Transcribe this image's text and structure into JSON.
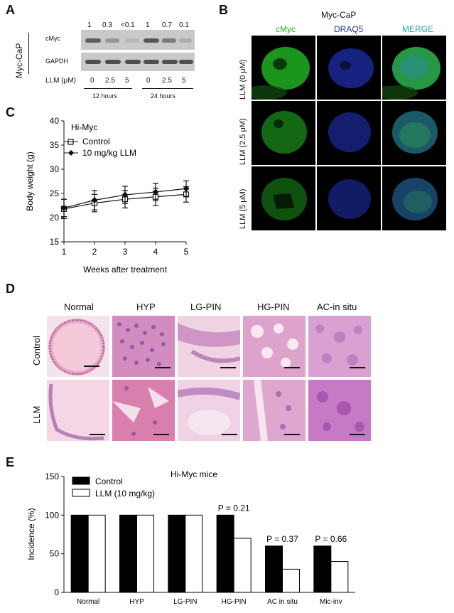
{
  "panels": {
    "a": "A",
    "b": "B",
    "c": "C",
    "d": "D",
    "e": "E"
  },
  "panelA": {
    "row_group": "Myc-CaP",
    "blot_rows": [
      "cMyc",
      "GAPDH"
    ],
    "ratios": [
      "1",
      "0.3",
      "<0.1",
      "1",
      "0.7",
      "0.1"
    ],
    "llm_label": "LLM (μM)",
    "doses": [
      "0",
      "2.5",
      "5",
      "0",
      "2.5",
      "5"
    ],
    "time_groups": [
      "12 hours",
      "24 hours"
    ]
  },
  "panelB": {
    "title": "Myc-CaP",
    "columns": [
      "cMyc",
      "DRAQ5",
      "MERGE"
    ],
    "column_colors": [
      "#22aa22",
      "#2233aa",
      "#22aaaa"
    ],
    "rows": [
      "LLM (0 μM)",
      "LLM (2.5 μM)",
      "LLM (5 μM)"
    ]
  },
  "chart_data": [
    {
      "type": "line",
      "panel": "C",
      "title": "Hi-Myc",
      "xlabel": "Weeks after treatment",
      "ylabel": "Body weight (g)",
      "x": [
        1,
        2,
        3,
        4,
        5
      ],
      "xlim": [
        1,
        5
      ],
      "ylim": [
        15,
        40
      ],
      "yticks": [
        15,
        20,
        25,
        30,
        35,
        40
      ],
      "series": [
        {
          "name": "Control",
          "marker": "open-square",
          "values": [
            21.8,
            23.0,
            23.8,
            24.3,
            24.8
          ],
          "error": [
            2.0,
            1.8,
            1.8,
            1.8,
            1.6
          ]
        },
        {
          "name": "10 mg/kg LLM",
          "marker": "filled-diamond",
          "values": [
            22.0,
            23.6,
            24.7,
            25.3,
            26.0
          ],
          "error": [
            1.8,
            2.0,
            1.8,
            1.8,
            1.6
          ]
        }
      ]
    },
    {
      "type": "bar",
      "panel": "E",
      "title": "Hi-Myc mice",
      "xlabel": "",
      "ylabel": "Incidence (%)",
      "ylim": [
        0,
        150
      ],
      "yticks": [
        0,
        50,
        100,
        150
      ],
      "categories": [
        "Normal",
        "HYP",
        "LG-PIN",
        "HG-PIN",
        "AC in situ",
        "Mic-inv"
      ],
      "series": [
        {
          "name": "Control",
          "color": "#000000",
          "values": [
            100,
            100,
            100,
            100,
            60,
            60
          ]
        },
        {
          "name": "LLM (10 mg/kg)",
          "color": "#ffffff",
          "values": [
            100,
            100,
            100,
            70,
            30,
            40
          ]
        }
      ],
      "annotations": [
        {
          "category": "HG-PIN",
          "text": "P = 0.21"
        },
        {
          "category": "AC in situ",
          "text": "P = 0.37"
        },
        {
          "category": "Mic-inv",
          "text": "P = 0.66"
        }
      ]
    }
  ],
  "panelD": {
    "columns": [
      "Normal",
      "HYP",
      "LG-PIN",
      "HG-PIN",
      "AC-in situ"
    ],
    "rows": [
      "Control",
      "LLM"
    ]
  }
}
